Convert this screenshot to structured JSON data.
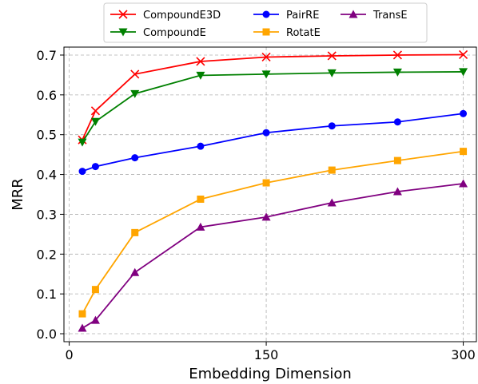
{
  "chart_data": {
    "type": "line",
    "xlabel": "Embedding Dimension",
    "ylabel": "MRR",
    "x": [
      10,
      20,
      50,
      100,
      150,
      200,
      250,
      300
    ],
    "xlim": [
      -4,
      310
    ],
    "ylim": [
      -0.02,
      0.72
    ],
    "xticks": [
      0,
      150,
      300
    ],
    "yticks": [
      0.0,
      0.1,
      0.2,
      0.3,
      0.4,
      0.5,
      0.6,
      0.7
    ],
    "grid": true,
    "legend_position": "top-center",
    "series": [
      {
        "name": "CompoundE3D",
        "color": "#ff0000",
        "marker": "x",
        "values": [
          0.487,
          0.56,
          0.652,
          0.684,
          0.695,
          0.698,
          0.7,
          0.701
        ]
      },
      {
        "name": "CompoundE",
        "color": "#008000",
        "marker": "triangle-down",
        "values": [
          0.481,
          0.533,
          0.603,
          0.649,
          0.652,
          0.655,
          0.657,
          0.658
        ]
      },
      {
        "name": "PairRE",
        "color": "#0000ff",
        "marker": "circle",
        "values": [
          0.408,
          0.42,
          0.442,
          0.471,
          0.505,
          0.522,
          0.532,
          0.553
        ]
      },
      {
        "name": "RotatE",
        "color": "#ffa500",
        "marker": "square",
        "values": [
          0.05,
          0.111,
          0.254,
          0.338,
          0.379,
          0.411,
          0.435,
          0.458
        ]
      },
      {
        "name": "TransE",
        "color": "#800080",
        "marker": "triangle-up",
        "values": [
          0.014,
          0.034,
          0.154,
          0.268,
          0.293,
          0.329,
          0.357,
          0.377
        ]
      }
    ]
  }
}
